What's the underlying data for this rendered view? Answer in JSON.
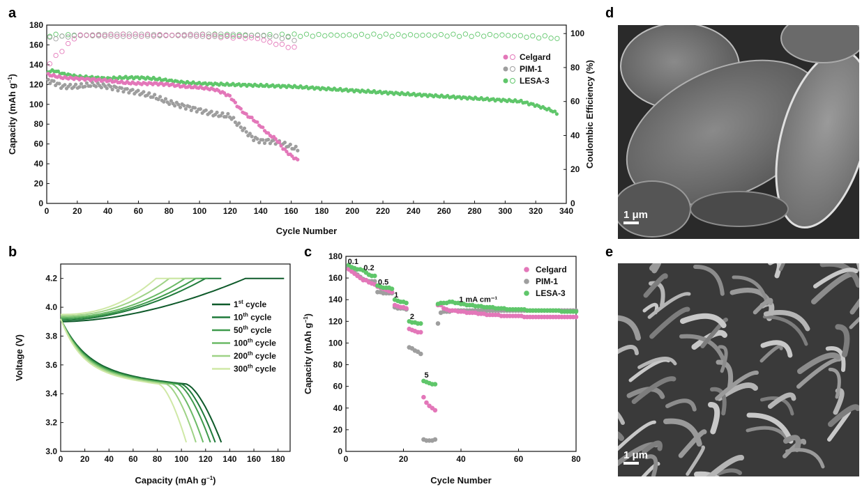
{
  "panels": {
    "a": "a",
    "b": "b",
    "c": "c",
    "d": "d",
    "e": "e"
  },
  "colors": {
    "celgard": "#e377b9",
    "pim1": "#9e9e9e",
    "lesa3": "#5fc66a",
    "cycles": [
      "#0e5a2a",
      "#1f7a3a",
      "#3e9a4c",
      "#6bba66",
      "#9ed286",
      "#cfe8a6"
    ]
  },
  "scale_bar_label": "1 μm",
  "chart_data": [
    {
      "panel": "a",
      "type": "scatter",
      "xlabel": "Cycle Number",
      "ylabel": "Capacity (mAh g",
      "ylabel_exp": "−1",
      "ylabel_end": ")",
      "y2label": "Coulombic Efficiency (%)",
      "xlim": [
        0,
        340
      ],
      "ylim": [
        0,
        180
      ],
      "y2lim": [
        0,
        105
      ],
      "xticks": [
        0,
        20,
        40,
        60,
        80,
        100,
        120,
        140,
        160,
        180,
        200,
        220,
        240,
        260,
        280,
        300,
        320,
        340
      ],
      "yticks": [
        0,
        20,
        40,
        60,
        80,
        100,
        120,
        140,
        160,
        180
      ],
      "y2ticks": [
        0,
        20,
        40,
        60,
        80,
        100
      ],
      "legend_position": "top-right",
      "series": [
        {
          "name": "Celgard",
          "color_key": "celgard",
          "x": [
            1,
            10,
            20,
            30,
            40,
            50,
            60,
            70,
            80,
            90,
            100,
            110,
            115,
            120,
            125,
            130,
            135,
            140,
            145,
            150,
            155,
            160,
            163,
            165
          ],
          "y": [
            130,
            127,
            126,
            125,
            124,
            122,
            121,
            121,
            120,
            118,
            117,
            115,
            112,
            108,
            98,
            90,
            85,
            78,
            70,
            65,
            55,
            48,
            45,
            43
          ],
          "ce_x": [
            1,
            20,
            40,
            60,
            80,
            100,
            120,
            140,
            145,
            150,
            155,
            160,
            163,
            165
          ],
          "ce": [
            82,
            99,
            99,
            99,
            99,
            99,
            98,
            97,
            95,
            94,
            93,
            92,
            91,
            90
          ]
        },
        {
          "name": "PIM-1",
          "color_key": "pim1",
          "x": [
            1,
            5,
            10,
            20,
            30,
            40,
            50,
            60,
            70,
            80,
            90,
            100,
            110,
            120,
            125,
            130,
            135,
            140,
            145,
            150,
            155,
            160,
            165
          ],
          "y": [
            124,
            122,
            118,
            118,
            120,
            118,
            115,
            112,
            108,
            102,
            98,
            94,
            90,
            88,
            80,
            73,
            66,
            63,
            63,
            62,
            60,
            57,
            54
          ],
          "ce_x": [
            1,
            20,
            40,
            60,
            80,
            100,
            120,
            140,
            150,
            160,
            165
          ],
          "ce": [
            97,
            99,
            99,
            99,
            99,
            99,
            99,
            99,
            98,
            97,
            96
          ]
        },
        {
          "name": "LESA-3",
          "color_key": "lesa3",
          "x": [
            1,
            5,
            10,
            20,
            30,
            40,
            50,
            60,
            70,
            80,
            90,
            100,
            120,
            140,
            160,
            180,
            200,
            220,
            240,
            260,
            280,
            300,
            310,
            320,
            330,
            335
          ],
          "y": [
            133,
            134,
            131,
            128,
            127,
            126,
            127,
            127,
            126,
            124,
            122,
            121,
            120,
            119,
            118,
            116,
            114,
            112,
            110,
            108,
            106,
            104,
            103,
            99,
            94,
            90
          ],
          "ce_x": [
            1,
            40,
            80,
            120,
            160,
            200,
            240,
            280,
            300,
            320,
            330,
            335
          ],
          "ce": [
            99,
            99,
            99,
            99,
            99,
            99,
            99,
            99,
            99,
            98,
            98,
            96
          ]
        }
      ]
    },
    {
      "panel": "b",
      "type": "line",
      "xlabel": "Capacity (mAh g",
      "xlabel_exp": "−1",
      "xlabel_end": ")",
      "ylabel": "Voltage (V)",
      "xlim": [
        0,
        190
      ],
      "ylim": [
        3.0,
        4.3
      ],
      "xticks": [
        0,
        20,
        40,
        60,
        80,
        100,
        120,
        140,
        160,
        180
      ],
      "yticks": [
        3.0,
        3.2,
        3.4,
        3.6,
        3.8,
        4.0,
        4.2
      ],
      "legend_position": "right",
      "series": [
        {
          "name_num": "1",
          "name_sup": "st",
          "name_rest": " cycle",
          "cap_charge": 153,
          "cap_end": 185,
          "cap_discharge": 133
        },
        {
          "name_num": "10",
          "name_sup": "th",
          "name_rest": " cycle",
          "cap_charge": 120,
          "cap_end": 133,
          "cap_discharge": 128
        },
        {
          "name_num": "50",
          "name_sup": "th",
          "name_rest": " cycle",
          "cap_charge": 112,
          "cap_end": 122,
          "cap_discharge": 124
        },
        {
          "name_num": "100",
          "name_sup": "th",
          "name_rest": " cycle",
          "cap_charge": 103,
          "cap_end": 116,
          "cap_discharge": 118
        },
        {
          "name_num": "200",
          "name_sup": "th",
          "name_rest": " cycle",
          "cap_charge": 90,
          "cap_end": 110,
          "cap_discharge": 112
        },
        {
          "name_num": "300",
          "name_sup": "th",
          "name_rest": " cycle",
          "cap_charge": 79,
          "cap_end": 100,
          "cap_discharge": 104
        }
      ]
    },
    {
      "panel": "c",
      "type": "scatter",
      "xlabel": "Cycle Number",
      "ylabel": "Capacity (mAh g",
      "ylabel_exp": "−1",
      "ylabel_end": ")",
      "xlim": [
        0,
        80
      ],
      "ylim": [
        0,
        180
      ],
      "xticks": [
        0,
        20,
        40,
        60,
        80
      ],
      "yticks": [
        0,
        20,
        40,
        60,
        80,
        100,
        120,
        140,
        160,
        180
      ],
      "legend_position": "top-right",
      "rate_labels": [
        {
          "text": "0.1",
          "x": 2.5,
          "y": 173
        },
        {
          "text": "0.2",
          "x": 8,
          "y": 167
        },
        {
          "text": "0.5",
          "x": 13,
          "y": 154
        },
        {
          "text": "1",
          "x": 17.5,
          "y": 142
        },
        {
          "text": "2",
          "x": 23,
          "y": 122
        },
        {
          "text": "5",
          "x": 28,
          "y": 68
        },
        {
          "text": "1 mA cm⁻¹",
          "x": 46,
          "y": 138
        }
      ],
      "series": [
        {
          "name": "Celgard",
          "color_key": "celgard",
          "values": [
            168,
            166,
            164,
            162,
            160,
            158,
            158,
            156,
            155,
            154,
            152,
            151,
            150,
            149,
            148,
            147,
            135,
            134,
            133,
            133,
            132,
            113,
            112,
            111,
            110,
            110,
            50,
            45,
            42,
            40,
            38,
            135,
            135,
            132,
            131,
            130,
            130,
            130,
            129,
            129,
            129,
            128,
            128,
            128,
            128,
            127,
            127,
            127,
            126,
            126,
            126,
            126,
            126,
            125,
            125,
            125,
            125,
            125,
            125,
            125,
            125,
            124,
            124,
            124,
            124,
            124,
            124,
            124,
            124,
            124,
            124,
            124,
            124,
            124,
            124,
            124,
            124,
            124,
            124,
            124
          ]
        },
        {
          "name": "PIM-1",
          "color_key": "pim1",
          "values": [
            170,
            168,
            165,
            163,
            161,
            159,
            158,
            157,
            157,
            157,
            147,
            147,
            146,
            146,
            146,
            146,
            133,
            132,
            132,
            132,
            131,
            96,
            95,
            93,
            92,
            90,
            11,
            10,
            10,
            10,
            11,
            118,
            128,
            129,
            129,
            129,
            130,
            130,
            130,
            130,
            130,
            130,
            130,
            130,
            130,
            130,
            130,
            130,
            130,
            130,
            130,
            130,
            130,
            130,
            130,
            130,
            130,
            130,
            130,
            130,
            130,
            130,
            130,
            130,
            130,
            130,
            130,
            130,
            130,
            130,
            130,
            130,
            130,
            130,
            130,
            130,
            130,
            130,
            130,
            130
          ]
        },
        {
          "name": "LESA-3",
          "color_key": "lesa3",
          "values": [
            172,
            170,
            169,
            168,
            168,
            167,
            165,
            163,
            162,
            162,
            153,
            152,
            151,
            151,
            151,
            150,
            140,
            139,
            138,
            138,
            137,
            120,
            119,
            119,
            118,
            118,
            65,
            64,
            63,
            62,
            62,
            136,
            137,
            137,
            137,
            138,
            138,
            137,
            137,
            136,
            136,
            135,
            135,
            135,
            134,
            134,
            134,
            133,
            133,
            133,
            133,
            132,
            132,
            132,
            132,
            131,
            131,
            131,
            131,
            131,
            131,
            131,
            130,
            130,
            130,
            130,
            130,
            130,
            130,
            130,
            130,
            130,
            130,
            130,
            129,
            129,
            129,
            129,
            129,
            129
          ]
        }
      ]
    }
  ]
}
